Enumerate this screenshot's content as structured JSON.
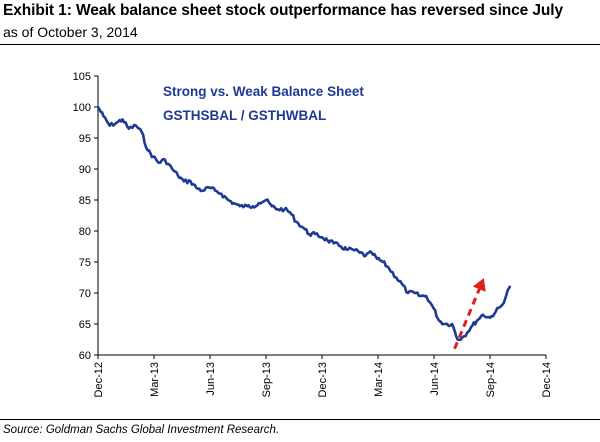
{
  "header": {
    "title": "Exhibit 1: Weak balance sheet stock outperformance has reversed since July",
    "subtitle": "as of October 3, 2014"
  },
  "footer": {
    "source": "Source: Goldman Sachs Global Investment Research."
  },
  "colors": {
    "series": "#1f3a93",
    "annotation_text": "#1f3a93",
    "arrow": "#e02020",
    "axis": "#000000"
  },
  "chart_data": {
    "type": "line",
    "title": "",
    "xlabel": "",
    "ylabel": "",
    "annotation": [
      "Strong vs. Weak Balance Sheet",
      "GSTHSBAL / GSTHWBAL"
    ],
    "ylim": [
      60,
      105
    ],
    "yticks": [
      60,
      65,
      70,
      75,
      80,
      85,
      90,
      95,
      100,
      105
    ],
    "xlim": [
      "2012-12-01",
      "2014-12-01"
    ],
    "xticks": [
      "Dec-12",
      "Mar-13",
      "Jun-13",
      "Sep-13",
      "Dec-13",
      "Mar-14",
      "Jun-14",
      "Sep-14",
      "Dec-14"
    ],
    "grid": false,
    "legend": "none",
    "series": [
      {
        "x": [
          "2012-12-01",
          "2012-12-10",
          "2012-12-20",
          "2013-01-01",
          "2013-01-10",
          "2013-01-20",
          "2013-02-01",
          "2013-02-10",
          "2013-02-20",
          "2013-03-01",
          "2013-03-10",
          "2013-03-20",
          "2013-04-01",
          "2013-04-10",
          "2013-04-20",
          "2013-05-01",
          "2013-05-10",
          "2013-05-20",
          "2013-06-01",
          "2013-06-10",
          "2013-06-20",
          "2013-07-01",
          "2013-07-10",
          "2013-07-20",
          "2013-08-01",
          "2013-08-10",
          "2013-08-20",
          "2013-09-01",
          "2013-09-10",
          "2013-09-20",
          "2013-10-01",
          "2013-10-10",
          "2013-10-20",
          "2013-11-01",
          "2013-11-10",
          "2013-11-20",
          "2013-12-01",
          "2013-12-10",
          "2013-12-20",
          "2014-01-01",
          "2014-01-10",
          "2014-01-20",
          "2014-02-01",
          "2014-02-10",
          "2014-02-20",
          "2014-03-01",
          "2014-03-10",
          "2014-03-20",
          "2014-04-01",
          "2014-04-10",
          "2014-04-20",
          "2014-05-01",
          "2014-05-10",
          "2014-05-20",
          "2014-06-01",
          "2014-06-10",
          "2014-06-20",
          "2014-07-01",
          "2014-07-10",
          "2014-07-20",
          "2014-08-01",
          "2014-08-10",
          "2014-08-20",
          "2014-09-01",
          "2014-09-10",
          "2014-09-20",
          "2014-10-03"
        ],
        "values": [
          100,
          98.5,
          97,
          97.5,
          98,
          96.5,
          97,
          96,
          93,
          92,
          91,
          91.5,
          90,
          89,
          88,
          88,
          87,
          86.5,
          87,
          86.5,
          86,
          85,
          84.5,
          84,
          84,
          84,
          84.5,
          85,
          84,
          83.5,
          83.5,
          83,
          81.5,
          80.5,
          79.5,
          79.5,
          79,
          78.5,
          78,
          77.5,
          77,
          77,
          76.5,
          76,
          76.5,
          75.5,
          75,
          74,
          72.5,
          71.5,
          70,
          70,
          69.5,
          69.5,
          67.5,
          65.5,
          65,
          65,
          62.5,
          63,
          64.5,
          65.5,
          66.5,
          66,
          67,
          68,
          71
        ]
      }
    ]
  }
}
